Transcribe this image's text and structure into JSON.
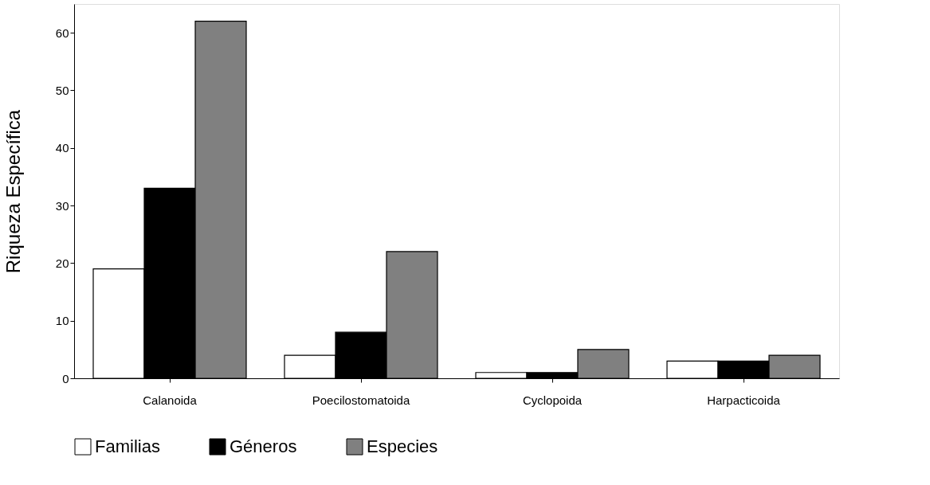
{
  "chart_data": {
    "type": "bar",
    "ylabel": "Riqueza  Específica",
    "categories": [
      "Calanoida",
      "Poecilostomatoida",
      "Cyclopoida",
      "Harpacticoida"
    ],
    "series": [
      {
        "name": "Familias",
        "color": "#ffffff",
        "values": [
          19,
          4,
          1,
          3
        ]
      },
      {
        "name": "Géneros",
        "color": "#000000",
        "values": [
          33,
          8,
          1,
          3
        ]
      },
      {
        "name": "Especies",
        "color": "#808080",
        "values": [
          62,
          22,
          5,
          4
        ]
      }
    ],
    "ylim": [
      0,
      65
    ],
    "yticks": [
      0,
      10,
      20,
      30,
      40,
      50,
      60
    ],
    "grid": false,
    "legend": "bottom"
  }
}
